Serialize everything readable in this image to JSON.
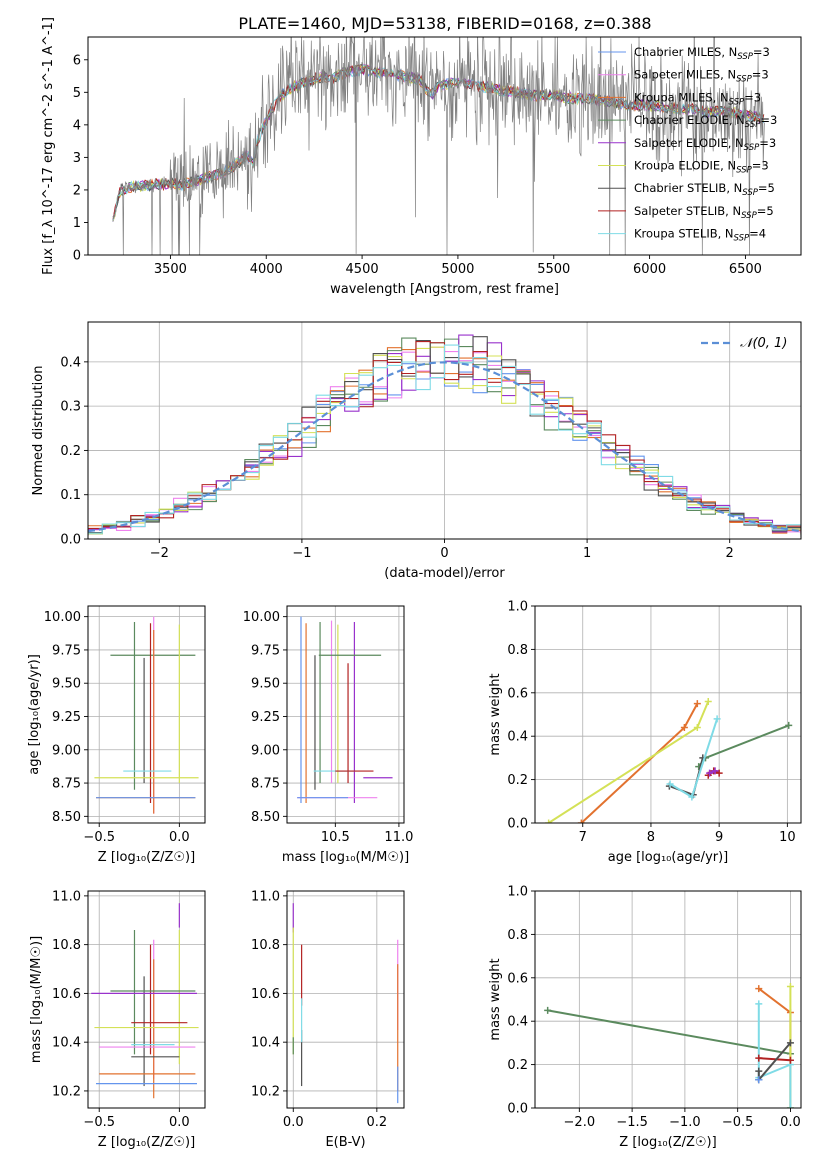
{
  "figure": {
    "title": "PLATE=1460, MJD=53138, FIBERID=0168, z=0.388"
  },
  "models": [
    {
      "name": "Chabrier MILES, N_SSP=3",
      "base": "Chabrier MILES, N",
      "sub": "SSP",
      "tail": "=3",
      "color": "#6495ed"
    },
    {
      "name": "Salpeter MILES, N_SSP=3",
      "base": "Salpeter MILES, N",
      "sub": "SSP",
      "tail": "=3",
      "color": "#ee82ee"
    },
    {
      "name": "Kroupa MILES, N_SSP=3",
      "base": "Kroupa MILES, N",
      "sub": "SSP",
      "tail": "=3",
      "color": "#e2722f"
    },
    {
      "name": "Chabrier ELODIE, N_SSP=3",
      "base": "Chabrier ELODIE, N",
      "sub": "SSP",
      "tail": "=3",
      "color": "#5b8a5e"
    },
    {
      "name": "Salpeter ELODIE, N_SSP=3",
      "base": "Salpeter ELODIE, N",
      "sub": "SSP",
      "tail": "=3",
      "color": "#9932cc"
    },
    {
      "name": "Kroupa ELODIE, N_SSP=3",
      "base": "Kroupa ELODIE, N",
      "sub": "SSP",
      "tail": "=3",
      "color": "#d4e157"
    },
    {
      "name": "Chabrier STELIB, N_SSP=5",
      "base": "Chabrier STELIB, N",
      "sub": "SSP",
      "tail": "=5",
      "color": "#505050"
    },
    {
      "name": "Salpeter STELIB, N_SSP=5",
      "base": "Salpeter STELIB, N",
      "sub": "SSP",
      "tail": "=5",
      "color": "#b22222"
    },
    {
      "name": "Kroupa STELIB, N_SSP=4",
      "base": "Kroupa STELIB, N",
      "sub": "SSP",
      "tail": "=4",
      "color": "#7fdbe6"
    }
  ],
  "chart_data": [
    {
      "id": "spectrum",
      "type": "line",
      "xlabel": "wavelength [Angstrom, rest frame]",
      "ylabel": "Flux [f_λ 10^-17 erg cm^-2 s^-1 A^-1]",
      "xlim": [
        3070,
        6790
      ],
      "ylim": [
        0,
        6.7
      ],
      "xticks": [
        3500,
        4000,
        4500,
        5000,
        5500,
        6000,
        6500
      ],
      "yticks": [
        0,
        1,
        2,
        3,
        4,
        5,
        6
      ],
      "data_color": "#808080",
      "continuum": {
        "x": [
          3200,
          3240,
          3300,
          3400,
          3500,
          3560,
          3640,
          3700,
          3760,
          3820,
          3870,
          3900,
          3930,
          3960,
          3990,
          4030,
          4080,
          4120,
          4200,
          4300,
          4340,
          4400,
          4500,
          4600,
          4700,
          4800,
          4860,
          4900,
          5000,
          5100,
          5200,
          5300,
          5400,
          5500,
          5600,
          5700,
          5800,
          5900,
          6000,
          6100,
          6200,
          6300,
          6400,
          6500,
          6600
        ],
        "y": [
          1.1,
          2.0,
          2.1,
          2.15,
          2.2,
          2.15,
          2.3,
          2.4,
          2.5,
          2.7,
          2.9,
          3.1,
          2.8,
          3.6,
          4.0,
          4.5,
          4.9,
          5.1,
          5.3,
          5.5,
          5.4,
          5.6,
          5.7,
          5.6,
          5.5,
          5.4,
          4.9,
          5.2,
          5.3,
          5.2,
          5.1,
          5.0,
          4.9,
          4.9,
          4.8,
          4.8,
          4.7,
          4.6,
          4.6,
          4.5,
          4.5,
          4.4,
          4.4,
          4.3,
          4.2
        ]
      }
    },
    {
      "id": "residuals",
      "type": "line",
      "xlabel": "(data-model)/error",
      "ylabel": "Normed distribution",
      "xlim": [
        -2.5,
        2.5
      ],
      "ylim": [
        0,
        0.49
      ],
      "xticks": [
        -2,
        -1,
        0,
        1,
        2
      ],
      "yticks": [
        0.0,
        0.1,
        0.2,
        0.3,
        0.4
      ],
      "legend_label": "𝒩(0, 1)",
      "reference_color": "#5b8fd6"
    },
    {
      "id": "z-age",
      "type": "scatter",
      "xlabel": "Z [log₁₀(Z/Z☉)]",
      "ylabel": "age  [log₁₀(age/yr)]",
      "xlim": [
        -0.57,
        0.16
      ],
      "ylim": [
        8.45,
        10.08
      ],
      "xticks": [
        -0.5,
        0.0
      ],
      "yticks": [
        8.5,
        8.75,
        9.0,
        9.25,
        9.5,
        9.75,
        10.0
      ],
      "segments": [
        {
          "c": 3,
          "t": "h",
          "v": 9.71,
          "a": -0.43,
          "b": 0.1
        },
        {
          "c": 3,
          "t": "v",
          "v": -0.28,
          "a": 8.7,
          "b": 9.96
        },
        {
          "c": 6,
          "t": "v",
          "v": -0.22,
          "a": 8.75,
          "b": 9.69
        },
        {
          "c": 7,
          "t": "v",
          "v": -0.18,
          "a": 8.6,
          "b": 9.95
        },
        {
          "c": 1,
          "t": "v",
          "v": -0.16,
          "a": 8.52,
          "b": 10.0
        },
        {
          "c": 2,
          "t": "v",
          "v": -0.16,
          "a": 8.52,
          "b": 9.9
        },
        {
          "c": 5,
          "t": "v",
          "v": 0.0,
          "a": 8.75,
          "b": 9.94
        },
        {
          "c": 8,
          "t": "h",
          "v": 8.84,
          "a": -0.35,
          "b": -0.05
        },
        {
          "c": 5,
          "t": "h",
          "v": 8.79,
          "a": -0.53,
          "b": 0.12
        },
        {
          "c": 2,
          "t": "h",
          "v": 8.64,
          "a": -0.52,
          "b": 0.1
        },
        {
          "c": 0,
          "t": "h",
          "v": 8.64,
          "a": -0.52,
          "b": 0.1
        }
      ]
    },
    {
      "id": "mass-age",
      "type": "scatter",
      "xlabel": "mass [log₁₀(M/M☉)]",
      "ylabel": "",
      "xlim": [
        10.12,
        11.04
      ],
      "ylim": [
        8.45,
        10.08
      ],
      "xticks": [
        10.5,
        11.0
      ],
      "yticks": [
        8.5,
        8.75,
        9.0,
        9.25,
        9.5,
        9.75,
        10.0
      ],
      "segments": [
        {
          "c": 0,
          "t": "v",
          "v": 10.23,
          "a": 8.6,
          "b": 10.0
        },
        {
          "c": 2,
          "t": "v",
          "v": 10.27,
          "a": 8.6,
          "b": 9.95
        },
        {
          "c": 6,
          "t": "v",
          "v": 10.34,
          "a": 8.7,
          "b": 9.71
        },
        {
          "c": 3,
          "t": "v",
          "v": 10.38,
          "a": 8.75,
          "b": 9.96
        },
        {
          "c": 1,
          "t": "v",
          "v": 10.47,
          "a": 8.75,
          "b": 9.97
        },
        {
          "c": 5,
          "t": "v",
          "v": 10.52,
          "a": 8.75,
          "b": 9.94
        },
        {
          "c": 7,
          "t": "v",
          "v": 10.6,
          "a": 8.75,
          "b": 9.65
        },
        {
          "c": 4,
          "t": "v",
          "v": 10.65,
          "a": 8.6,
          "b": 9.96
        },
        {
          "c": 3,
          "t": "h",
          "v": 9.71,
          "a": 10.37,
          "b": 10.86
        },
        {
          "c": 8,
          "t": "h",
          "v": 8.84,
          "a": 10.33,
          "b": 10.66
        },
        {
          "c": 7,
          "t": "h",
          "v": 8.84,
          "a": 10.5,
          "b": 10.8
        },
        {
          "c": 4,
          "t": "h",
          "v": 8.79,
          "a": 10.72,
          "b": 10.95
        },
        {
          "c": 1,
          "t": "h",
          "v": 8.64,
          "a": 10.2,
          "b": 10.83
        },
        {
          "c": 0,
          "t": "h",
          "v": 8.64,
          "a": 10.2,
          "b": 10.6
        }
      ]
    },
    {
      "id": "age-weight",
      "type": "line",
      "xlabel": "age  [log₁₀(age/yr)]",
      "ylabel": "mass weight",
      "xlim": [
        6.3,
        10.2
      ],
      "ylim": [
        0,
        1.0
      ],
      "xticks": [
        7,
        8,
        9,
        10
      ],
      "yticks": [
        0.0,
        0.2,
        0.4,
        0.6,
        0.8,
        1.0
      ],
      "series": [
        {
          "c": 2,
          "x": [
            6.98,
            8.49,
            8.68
          ],
          "y": [
            0.0,
            0.44,
            0.55
          ]
        },
        {
          "c": 5,
          "x": [
            6.5,
            8.68,
            8.84
          ],
          "y": [
            0.0,
            0.44,
            0.56
          ]
        },
        {
          "c": 3,
          "x": [
            8.7,
            8.8,
            10.02
          ],
          "y": [
            0.26,
            0.3,
            0.45
          ]
        },
        {
          "c": 6,
          "x": [
            8.27,
            8.62,
            8.76
          ],
          "y": [
            0.17,
            0.13,
            0.3
          ]
        },
        {
          "c": 8,
          "x": [
            8.28,
            8.6,
            8.97
          ],
          "y": [
            0.18,
            0.12,
            0.48
          ]
        },
        {
          "c": 7,
          "x": [
            8.84,
            8.92,
            9.0
          ],
          "y": [
            0.22,
            0.24,
            0.23
          ]
        },
        {
          "c": 4,
          "x": [
            8.86,
            8.94
          ],
          "y": [
            0.23,
            0.24
          ]
        }
      ]
    },
    {
      "id": "z-mass",
      "type": "scatter",
      "xlabel": "Z [log₁₀(Z/Z☉)]",
      "ylabel": "mass [log₁₀(M/M☉)]",
      "xlim": [
        -0.57,
        0.16
      ],
      "ylim": [
        10.13,
        11.02
      ],
      "xticks": [
        -0.5,
        0.0
      ],
      "yticks": [
        10.2,
        10.4,
        10.6,
        10.8,
        11.0
      ],
      "segments": [
        {
          "c": 3,
          "t": "v",
          "v": -0.28,
          "a": 10.35,
          "b": 10.86
        },
        {
          "c": 6,
          "t": "v",
          "v": -0.22,
          "a": 10.22,
          "b": 10.67
        },
        {
          "c": 7,
          "t": "v",
          "v": -0.18,
          "a": 10.35,
          "b": 10.8
        },
        {
          "c": 1,
          "t": "v",
          "v": -0.16,
          "a": 10.25,
          "b": 10.82
        },
        {
          "c": 2,
          "t": "v",
          "v": -0.16,
          "a": 10.17,
          "b": 10.74
        },
        {
          "c": 5,
          "t": "v",
          "v": 0.0,
          "a": 10.31,
          "b": 10.86
        },
        {
          "c": 4,
          "t": "v",
          "v": 0.0,
          "a": 10.87,
          "b": 10.97
        },
        {
          "c": 3,
          "t": "h",
          "v": 10.61,
          "a": -0.43,
          "b": 0.1
        },
        {
          "c": 4,
          "t": "h",
          "v": 10.6,
          "a": -0.55,
          "b": 0.11
        },
        {
          "c": 7,
          "t": "h",
          "v": 10.48,
          "a": -0.3,
          "b": 0.05
        },
        {
          "c": 5,
          "t": "h",
          "v": 10.46,
          "a": -0.53,
          "b": 0.12
        },
        {
          "c": 8,
          "t": "h",
          "v": 10.39,
          "a": -0.3,
          "b": -0.03
        },
        {
          "c": 1,
          "t": "h",
          "v": 10.38,
          "a": -0.5,
          "b": 0.1
        },
        {
          "c": 6,
          "t": "h",
          "v": 10.34,
          "a": -0.3,
          "b": 0.0
        },
        {
          "c": 2,
          "t": "h",
          "v": 10.27,
          "a": -0.5,
          "b": 0.1
        },
        {
          "c": 0,
          "t": "h",
          "v": 10.23,
          "a": -0.52,
          "b": 0.11
        }
      ]
    },
    {
      "id": "ebv-mass",
      "type": "scatter",
      "xlabel": "E(B-V)",
      "ylabel": "",
      "xlim": [
        -0.015,
        0.265
      ],
      "ylim": [
        10.13,
        11.02
      ],
      "xticks": [
        0.0,
        0.2
      ],
      "yticks": [
        10.2,
        10.4,
        10.6,
        10.8,
        11.0
      ],
      "segments": [
        {
          "c": 4,
          "t": "v",
          "v": 0.0,
          "a": 10.85,
          "b": 10.97
        },
        {
          "c": 5,
          "t": "v",
          "v": 0.0,
          "a": 10.35,
          "b": 10.87
        },
        {
          "c": 3,
          "t": "v",
          "v": 0.0,
          "a": 10.35,
          "b": 10.42
        },
        {
          "c": 6,
          "t": "v",
          "v": 0.02,
          "a": 10.22,
          "b": 10.45
        },
        {
          "c": 7,
          "t": "v",
          "v": 0.02,
          "a": 10.55,
          "b": 10.8
        },
        {
          "c": 8,
          "t": "v",
          "v": 0.02,
          "a": 10.4,
          "b": 10.58
        },
        {
          "c": 1,
          "t": "v",
          "v": 0.25,
          "a": 10.45,
          "b": 10.82
        },
        {
          "c": 2,
          "t": "v",
          "v": 0.25,
          "a": 10.2,
          "b": 10.72
        },
        {
          "c": 0,
          "t": "v",
          "v": 0.25,
          "a": 10.15,
          "b": 10.3
        }
      ]
    },
    {
      "id": "z-weight",
      "type": "line",
      "xlabel": "Z [log₁₀(Z/Z☉)]",
      "ylabel": "mass weight",
      "xlim": [
        -2.42,
        0.1
      ],
      "ylim": [
        0,
        1.0
      ],
      "xticks": [
        -2.0,
        -1.5,
        -1.0,
        -0.5,
        0.0
      ],
      "yticks": [
        0.0,
        0.2,
        0.4,
        0.6,
        0.8,
        1.0
      ],
      "series": [
        {
          "c": 3,
          "x": [
            -2.3,
            0.0
          ],
          "y": [
            0.45,
            0.25
          ]
        },
        {
          "c": 2,
          "x": [
            -0.3,
            0.0,
            0.0
          ],
          "y": [
            0.55,
            0.44,
            0.0
          ]
        },
        {
          "c": 5,
          "x": [
            0.0,
            0.0
          ],
          "y": [
            0.56,
            0.0
          ]
        },
        {
          "c": 8,
          "x": [
            -0.3,
            -0.3,
            0.0,
            0.0
          ],
          "y": [
            0.48,
            0.14,
            0.2,
            0.0
          ]
        },
        {
          "c": 7,
          "x": [
            -0.3,
            0.0
          ],
          "y": [
            0.23,
            0.22
          ]
        },
        {
          "c": 6,
          "x": [
            -0.3,
            -0.3,
            0.0
          ],
          "y": [
            0.17,
            0.13,
            0.3
          ]
        },
        {
          "c": 0,
          "x": [
            -0.3
          ],
          "y": [
            0.13
          ]
        }
      ]
    }
  ]
}
